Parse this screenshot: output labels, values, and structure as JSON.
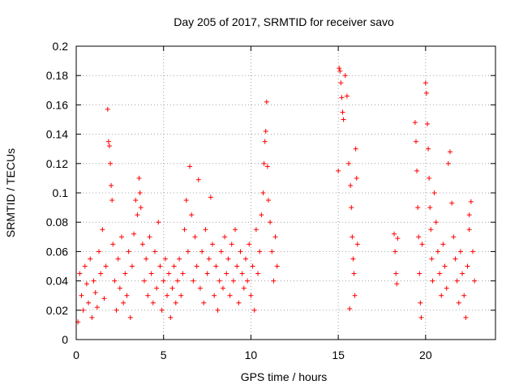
{
  "chart_data": {
    "type": "scatter",
    "title": "Day 205 of 2017, SRMTID for receiver savo",
    "xlabel": "GPS time / hours",
    "ylabel": "SRMTID / TECUs",
    "xlim": [
      0,
      24
    ],
    "ylim": [
      0,
      0.2
    ],
    "xticks": [
      0,
      5,
      10,
      15,
      20
    ],
    "xtick_labels": [
      "0",
      "5",
      "10",
      "15",
      "20"
    ],
    "yticks": [
      0,
      0.02,
      0.04,
      0.06,
      0.08,
      0.1,
      0.12,
      0.14,
      0.16,
      0.18,
      0.2
    ],
    "ytick_labels": [
      "0",
      "0.02",
      "0.04",
      "0.06",
      "0.08",
      "0.1",
      "0.12",
      "0.14",
      "0.16",
      "0.18",
      "0.2"
    ],
    "grid": true,
    "marker": "+",
    "color": "#ff0000",
    "series": [
      {
        "name": "SRMTID",
        "points": [
          [
            0.1,
            0.012
          ],
          [
            0.2,
            0.045
          ],
          [
            0.3,
            0.03
          ],
          [
            0.4,
            0.02
          ],
          [
            0.5,
            0.05
          ],
          [
            0.6,
            0.038
          ],
          [
            0.7,
            0.025
          ],
          [
            0.8,
            0.055
          ],
          [
            0.9,
            0.015
          ],
          [
            1.0,
            0.04
          ],
          [
            1.1,
            0.032
          ],
          [
            1.2,
            0.022
          ],
          [
            1.3,
            0.06
          ],
          [
            1.4,
            0.045
          ],
          [
            1.5,
            0.075
          ],
          [
            1.6,
            0.028
          ],
          [
            1.7,
            0.05
          ],
          [
            1.8,
            0.157
          ],
          [
            1.85,
            0.135
          ],
          [
            1.9,
            0.132
          ],
          [
            1.95,
            0.12
          ],
          [
            2.0,
            0.105
          ],
          [
            2.05,
            0.095
          ],
          [
            2.1,
            0.065
          ],
          [
            2.2,
            0.04
          ],
          [
            2.3,
            0.02
          ],
          [
            2.4,
            0.055
          ],
          [
            2.5,
            0.035
          ],
          [
            2.6,
            0.07
          ],
          [
            2.7,
            0.025
          ],
          [
            2.8,
            0.045
          ],
          [
            2.9,
            0.03
          ],
          [
            3.0,
            0.06
          ],
          [
            3.1,
            0.015
          ],
          [
            3.2,
            0.05
          ],
          [
            3.3,
            0.072
          ],
          [
            3.4,
            0.095
          ],
          [
            3.5,
            0.085
          ],
          [
            3.6,
            0.11
          ],
          [
            3.65,
            0.1
          ],
          [
            3.7,
            0.09
          ],
          [
            3.8,
            0.065
          ],
          [
            3.9,
            0.04
          ],
          [
            4.0,
            0.055
          ],
          [
            4.1,
            0.03
          ],
          [
            4.2,
            0.07
          ],
          [
            4.3,
            0.045
          ],
          [
            4.4,
            0.025
          ],
          [
            4.5,
            0.06
          ],
          [
            4.6,
            0.035
          ],
          [
            4.7,
            0.08
          ],
          [
            4.8,
            0.05
          ],
          [
            4.9,
            0.02
          ],
          [
            5.0,
            0.04
          ],
          [
            5.1,
            0.055
          ],
          [
            5.2,
            0.03
          ],
          [
            5.3,
            0.045
          ],
          [
            5.4,
            0.015
          ],
          [
            5.5,
            0.035
          ],
          [
            5.6,
            0.05
          ],
          [
            5.7,
            0.025
          ],
          [
            5.8,
            0.04
          ],
          [
            5.9,
            0.055
          ],
          [
            6.0,
            0.03
          ],
          [
            6.1,
            0.045
          ],
          [
            6.2,
            0.075
          ],
          [
            6.3,
            0.095
          ],
          [
            6.4,
            0.06
          ],
          [
            6.5,
            0.118
          ],
          [
            6.6,
            0.085
          ],
          [
            6.7,
            0.04
          ],
          [
            6.8,
            0.07
          ],
          [
            6.9,
            0.05
          ],
          [
            7.0,
            0.109
          ],
          [
            7.1,
            0.035
          ],
          [
            7.2,
            0.06
          ],
          [
            7.3,
            0.025
          ],
          [
            7.4,
            0.075
          ],
          [
            7.5,
            0.045
          ],
          [
            7.6,
            0.055
          ],
          [
            7.7,
            0.097
          ],
          [
            7.8,
            0.065
          ],
          [
            7.9,
            0.03
          ],
          [
            8.0,
            0.05
          ],
          [
            8.1,
            0.02
          ],
          [
            8.2,
            0.04
          ],
          [
            8.3,
            0.06
          ],
          [
            8.4,
            0.035
          ],
          [
            8.5,
            0.07
          ],
          [
            8.6,
            0.045
          ],
          [
            8.7,
            0.055
          ],
          [
            8.8,
            0.03
          ],
          [
            8.9,
            0.065
          ],
          [
            9.0,
            0.04
          ],
          [
            9.1,
            0.075
          ],
          [
            9.2,
            0.05
          ],
          [
            9.3,
            0.025
          ],
          [
            9.4,
            0.06
          ],
          [
            9.5,
            0.045
          ],
          [
            9.6,
            0.035
          ],
          [
            9.7,
            0.055
          ],
          [
            9.8,
            0.04
          ],
          [
            9.9,
            0.065
          ],
          [
            10.0,
            0.03
          ],
          [
            10.1,
            0.05
          ],
          [
            10.2,
            0.02
          ],
          [
            10.3,
            0.075
          ],
          [
            10.4,
            0.045
          ],
          [
            10.5,
            0.06
          ],
          [
            10.6,
            0.085
          ],
          [
            10.7,
            0.1
          ],
          [
            10.75,
            0.12
          ],
          [
            10.8,
            0.135
          ],
          [
            10.85,
            0.142
          ],
          [
            10.9,
            0.162
          ],
          [
            10.95,
            0.118
          ],
          [
            11.0,
            0.095
          ],
          [
            11.1,
            0.08
          ],
          [
            11.2,
            0.06
          ],
          [
            11.3,
            0.04
          ],
          [
            11.4,
            0.07
          ],
          [
            11.5,
            0.05
          ],
          [
            15.0,
            0.115
          ],
          [
            15.05,
            0.185
          ],
          [
            15.1,
            0.183
          ],
          [
            15.15,
            0.175
          ],
          [
            15.2,
            0.165
          ],
          [
            15.25,
            0.155
          ],
          [
            15.3,
            0.15
          ],
          [
            15.4,
            0.18
          ],
          [
            15.5,
            0.166
          ],
          [
            15.6,
            0.12
          ],
          [
            15.7,
            0.105
          ],
          [
            15.75,
            0.09
          ],
          [
            15.8,
            0.07
          ],
          [
            15.85,
            0.055
          ],
          [
            15.9,
            0.045
          ],
          [
            15.95,
            0.03
          ],
          [
            16.0,
            0.13
          ],
          [
            16.05,
            0.11
          ],
          [
            16.1,
            0.065
          ],
          [
            15.65,
            0.021
          ],
          [
            18.2,
            0.072
          ],
          [
            18.25,
            0.06
          ],
          [
            18.3,
            0.045
          ],
          [
            18.35,
            0.038
          ],
          [
            18.4,
            0.069
          ],
          [
            19.4,
            0.148
          ],
          [
            19.45,
            0.135
          ],
          [
            19.5,
            0.115
          ],
          [
            19.55,
            0.09
          ],
          [
            19.6,
            0.07
          ],
          [
            19.65,
            0.045
          ],
          [
            19.7,
            0.025
          ],
          [
            19.75,
            0.015
          ],
          [
            19.8,
            0.065
          ],
          [
            20.0,
            0.175
          ],
          [
            20.05,
            0.168
          ],
          [
            20.1,
            0.147
          ],
          [
            20.15,
            0.13
          ],
          [
            20.2,
            0.11
          ],
          [
            20.25,
            0.09
          ],
          [
            20.3,
            0.075
          ],
          [
            20.35,
            0.055
          ],
          [
            20.4,
            0.04
          ],
          [
            20.5,
            0.1
          ],
          [
            20.6,
            0.08
          ],
          [
            20.7,
            0.06
          ],
          [
            20.8,
            0.045
          ],
          [
            20.9,
            0.03
          ],
          [
            21.0,
            0.065
          ],
          [
            21.1,
            0.05
          ],
          [
            21.2,
            0.035
          ],
          [
            21.3,
            0.12
          ],
          [
            21.4,
            0.128
          ],
          [
            21.5,
            0.093
          ],
          [
            21.6,
            0.07
          ],
          [
            21.7,
            0.055
          ],
          [
            21.8,
            0.04
          ],
          [
            21.9,
            0.025
          ],
          [
            22.0,
            0.06
          ],
          [
            22.1,
            0.045
          ],
          [
            22.2,
            0.03
          ],
          [
            22.3,
            0.015
          ],
          [
            22.4,
            0.05
          ],
          [
            22.5,
            0.075
          ],
          [
            22.6,
            0.094
          ],
          [
            22.7,
            0.06
          ],
          [
            22.8,
            0.04
          ],
          [
            22.5,
            0.085
          ]
        ]
      }
    ]
  }
}
